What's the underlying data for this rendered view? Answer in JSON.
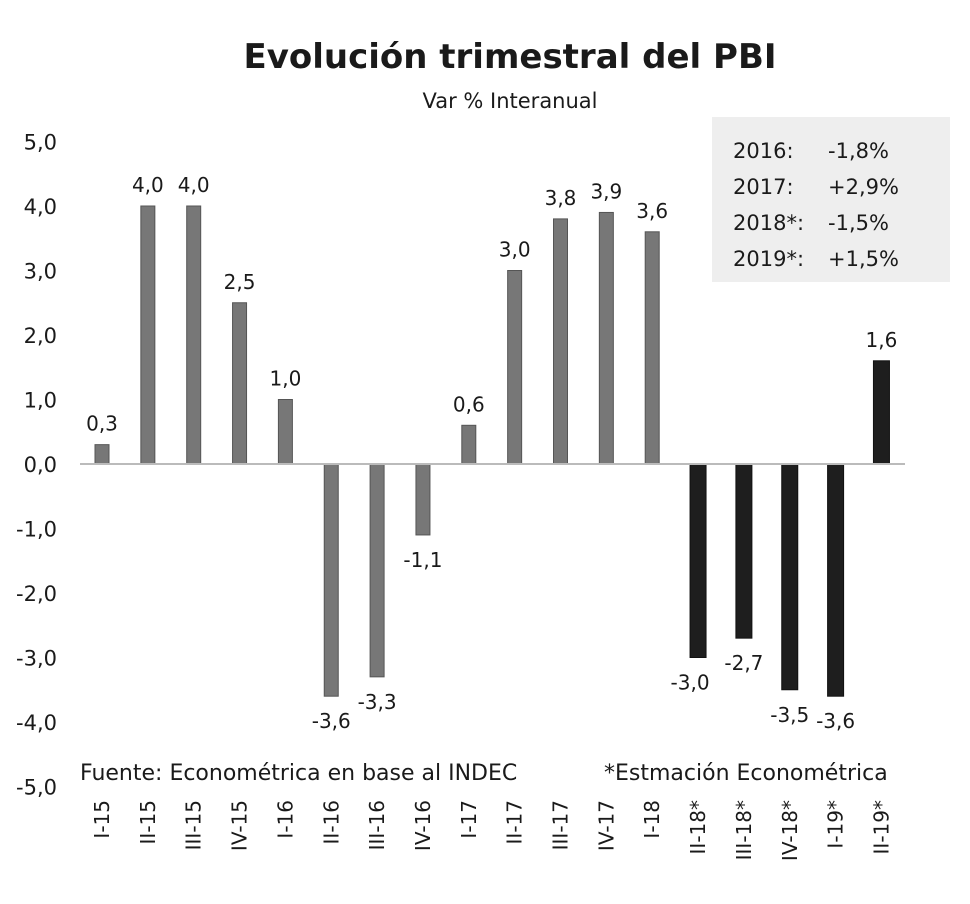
{
  "chart_data": {
    "type": "bar",
    "title": "Evolución trimestral del PBI",
    "subtitle": "Var % Interanual",
    "xlabel": "",
    "ylabel": "",
    "ylim": [
      -5,
      5
    ],
    "yticks": [
      "5,0",
      "4,0",
      "3,0",
      "2,0",
      "1,0",
      "0,0",
      "-1,0",
      "-2,0",
      "-3,0",
      "-4,0",
      "-5,0"
    ],
    "ytick_values": [
      5,
      4,
      3,
      2,
      1,
      0,
      -1,
      -2,
      -3,
      -4,
      -5
    ],
    "grid": false,
    "categories": [
      "I-15",
      "II-15",
      "III-15",
      "IV-15",
      "I-16",
      "II-16",
      "III-16",
      "IV-16",
      "I-17",
      "II-17",
      "III-17",
      "IV-17",
      "I-18",
      "II-18*",
      "III-18*",
      "IV-18*",
      "I-19*",
      "II-19*"
    ],
    "values": [
      0.3,
      4.0,
      4.0,
      2.5,
      1.0,
      -3.6,
      -3.3,
      -1.1,
      0.6,
      3.0,
      3.8,
      3.9,
      3.6,
      -3.0,
      -2.7,
      -3.5,
      -3.6,
      1.6
    ],
    "data_labels": [
      "0,3",
      "4,0",
      "4,0",
      "2,5",
      "1,0",
      "-3,6",
      "-3,3",
      "-1,1",
      "0,6",
      "3,0",
      "3,8",
      "3,9",
      "3,6",
      "-3,0",
      "-2,7",
      "-3,5",
      "-3,6",
      "1,6"
    ],
    "estimated": [
      false,
      false,
      false,
      false,
      false,
      false,
      false,
      false,
      false,
      false,
      false,
      false,
      false,
      true,
      true,
      true,
      true,
      true
    ],
    "colors": {
      "actual": "#777777",
      "estimated": "#1e1e1e",
      "axis": "#bbbbbb",
      "box": "#eeeeee"
    },
    "annual_box": [
      {
        "year": "2016:",
        "value": "-1,8%"
      },
      {
        "year": "2017:",
        "value": "+2,9%"
      },
      {
        "year": "2018*:",
        "value": "-1,5%"
      },
      {
        "year": "2019*:",
        "value": "+1,5%"
      }
    ],
    "source_note": "Fuente: Econométrica en base al INDEC",
    "estimate_note": "*Estmación Econométrica"
  }
}
